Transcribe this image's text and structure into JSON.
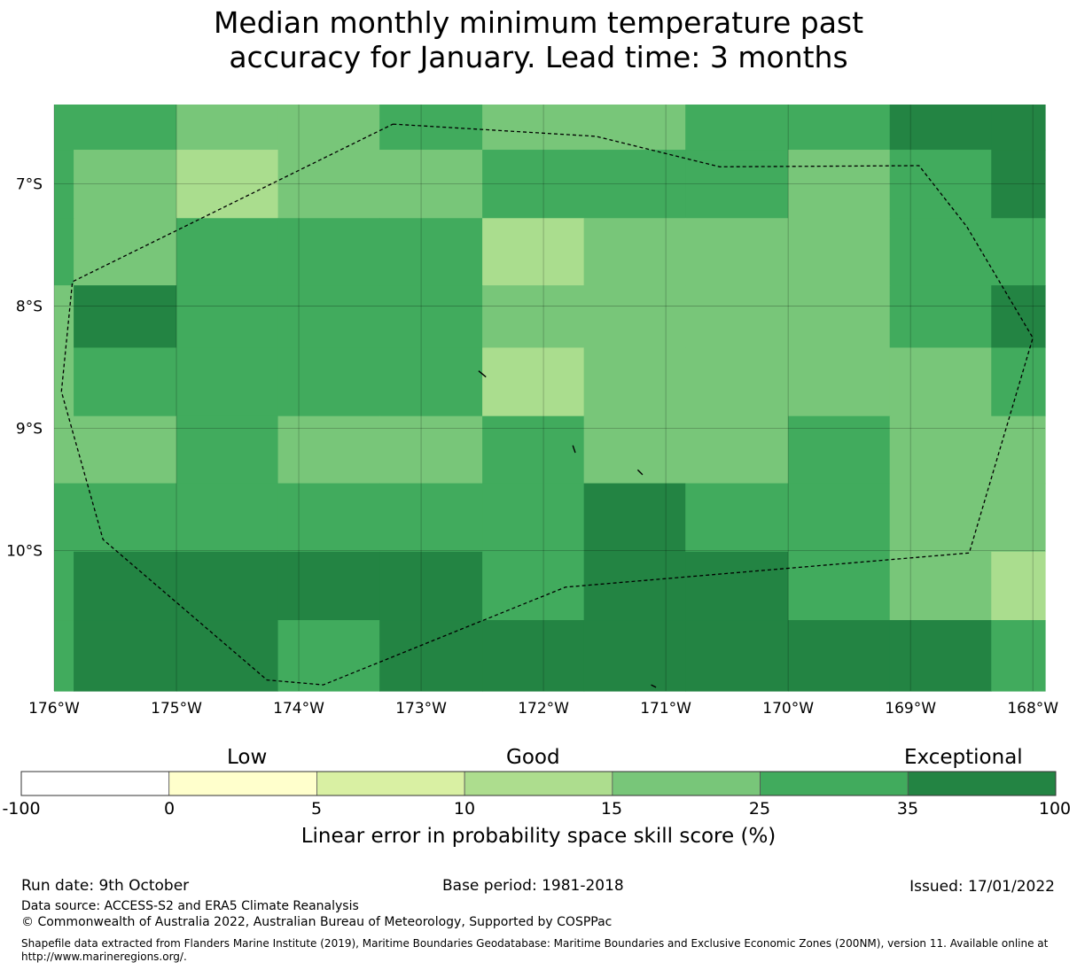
{
  "title": {
    "line1": "Median monthly minimum temperature past",
    "line2": "accuracy for January. Lead time: 3 months"
  },
  "map": {
    "lon_range": [
      -176.0,
      -167.9
    ],
    "lat_range": [
      -11.15,
      -6.35
    ],
    "lon_ticks": [
      {
        "value": -176,
        "label": "176°W"
      },
      {
        "value": -175,
        "label": "175°W"
      },
      {
        "value": -174,
        "label": "174°W"
      },
      {
        "value": -173,
        "label": "173°W"
      },
      {
        "value": -172,
        "label": "172°W"
      },
      {
        "value": -171,
        "label": "171°W"
      },
      {
        "value": -170,
        "label": "170°W"
      },
      {
        "value": -169,
        "label": "169°W"
      },
      {
        "value": -168,
        "label": "168°W"
      }
    ],
    "lat_ticks": [
      {
        "value": -7,
        "label": "7°S"
      },
      {
        "value": -8,
        "label": "8°S"
      },
      {
        "value": -9,
        "label": "9°S"
      },
      {
        "value": -10,
        "label": "10°S"
      }
    ],
    "grid": true,
    "colors": {
      "c4": "#aadd8e",
      "c5": "#78c679",
      "c6": "#41ab5d",
      "c7": "#238443"
    },
    "cells": [
      {
        "lon": [
          -176.0,
          -175.84
        ],
        "lat": [
          -6.72,
          -6.35
        ],
        "c": "c6"
      },
      {
        "lon": [
          -175.84,
          -175.0
        ],
        "lat": [
          -6.72,
          -6.35
        ],
        "c": "c6"
      },
      {
        "lon": [
          -175.0,
          -174.17
        ],
        "lat": [
          -6.72,
          -6.35
        ],
        "c": "c5"
      },
      {
        "lon": [
          -174.17,
          -173.34
        ],
        "lat": [
          -6.72,
          -6.35
        ],
        "c": "c5"
      },
      {
        "lon": [
          -173.34,
          -172.5
        ],
        "lat": [
          -6.72,
          -6.35
        ],
        "c": "c6"
      },
      {
        "lon": [
          -172.5,
          -171.67
        ],
        "lat": [
          -6.72,
          -6.35
        ],
        "c": "c5"
      },
      {
        "lon": [
          -171.67,
          -170.84
        ],
        "lat": [
          -6.72,
          -6.35
        ],
        "c": "c5"
      },
      {
        "lon": [
          -170.84,
          -170.0
        ],
        "lat": [
          -6.72,
          -6.35
        ],
        "c": "c6"
      },
      {
        "lon": [
          -170.0,
          -169.17
        ],
        "lat": [
          -6.72,
          -6.35
        ],
        "c": "c6"
      },
      {
        "lon": [
          -169.17,
          -168.34
        ],
        "lat": [
          -6.72,
          -6.35
        ],
        "c": "c7"
      },
      {
        "lon": [
          -168.34,
          -167.9
        ],
        "lat": [
          -6.72,
          -6.35
        ],
        "c": "c7"
      },
      {
        "lon": [
          -176.0,
          -175.84
        ],
        "lat": [
          -7.28,
          -6.72
        ],
        "c": "c6"
      },
      {
        "lon": [
          -175.84,
          -175.0
        ],
        "lat": [
          -7.28,
          -6.72
        ],
        "c": "c5"
      },
      {
        "lon": [
          -175.0,
          -174.17
        ],
        "lat": [
          -7.28,
          -6.72
        ],
        "c": "c4"
      },
      {
        "lon": [
          -174.17,
          -173.34
        ],
        "lat": [
          -7.28,
          -6.72
        ],
        "c": "c5"
      },
      {
        "lon": [
          -173.34,
          -172.5
        ],
        "lat": [
          -7.28,
          -6.72
        ],
        "c": "c5"
      },
      {
        "lon": [
          -172.5,
          -171.67
        ],
        "lat": [
          -7.28,
          -6.72
        ],
        "c": "c6"
      },
      {
        "lon": [
          -171.67,
          -170.84
        ],
        "lat": [
          -7.28,
          -6.72
        ],
        "c": "c6"
      },
      {
        "lon": [
          -170.84,
          -170.0
        ],
        "lat": [
          -7.28,
          -6.72
        ],
        "c": "c6"
      },
      {
        "lon": [
          -170.0,
          -169.17
        ],
        "lat": [
          -7.28,
          -6.72
        ],
        "c": "c5"
      },
      {
        "lon": [
          -169.17,
          -168.34
        ],
        "lat": [
          -7.28,
          -6.72
        ],
        "c": "c6"
      },
      {
        "lon": [
          -168.34,
          -167.9
        ],
        "lat": [
          -7.28,
          -6.72
        ],
        "c": "c7"
      },
      {
        "lon": [
          -176.0,
          -175.84
        ],
        "lat": [
          -7.83,
          -7.28
        ],
        "c": "c6"
      },
      {
        "lon": [
          -175.84,
          -175.0
        ],
        "lat": [
          -7.83,
          -7.28
        ],
        "c": "c5"
      },
      {
        "lon": [
          -175.0,
          -174.17
        ],
        "lat": [
          -7.83,
          -7.28
        ],
        "c": "c6"
      },
      {
        "lon": [
          -174.17,
          -173.34
        ],
        "lat": [
          -7.83,
          -7.28
        ],
        "c": "c6"
      },
      {
        "lon": [
          -173.34,
          -172.5
        ],
        "lat": [
          -7.83,
          -7.28
        ],
        "c": "c6"
      },
      {
        "lon": [
          -172.5,
          -171.67
        ],
        "lat": [
          -7.83,
          -7.28
        ],
        "c": "c4"
      },
      {
        "lon": [
          -171.67,
          -170.84
        ],
        "lat": [
          -7.83,
          -7.28
        ],
        "c": "c5"
      },
      {
        "lon": [
          -170.84,
          -170.0
        ],
        "lat": [
          -7.83,
          -7.28
        ],
        "c": "c5"
      },
      {
        "lon": [
          -170.0,
          -169.17
        ],
        "lat": [
          -7.83,
          -7.28
        ],
        "c": "c5"
      },
      {
        "lon": [
          -169.17,
          -168.34
        ],
        "lat": [
          -7.83,
          -7.28
        ],
        "c": "c6"
      },
      {
        "lon": [
          -168.34,
          -167.9
        ],
        "lat": [
          -7.83,
          -7.28
        ],
        "c": "c6"
      },
      {
        "lon": [
          -176.0,
          -175.84
        ],
        "lat": [
          -8.34,
          -7.83
        ],
        "c": "c5"
      },
      {
        "lon": [
          -175.84,
          -175.0
        ],
        "lat": [
          -8.34,
          -7.83
        ],
        "c": "c7"
      },
      {
        "lon": [
          -175.0,
          -174.17
        ],
        "lat": [
          -8.34,
          -7.83
        ],
        "c": "c6"
      },
      {
        "lon": [
          -174.17,
          -173.34
        ],
        "lat": [
          -8.34,
          -7.83
        ],
        "c": "c6"
      },
      {
        "lon": [
          -173.34,
          -172.5
        ],
        "lat": [
          -8.34,
          -7.83
        ],
        "c": "c6"
      },
      {
        "lon": [
          -172.5,
          -171.67
        ],
        "lat": [
          -8.34,
          -7.83
        ],
        "c": "c5"
      },
      {
        "lon": [
          -171.67,
          -170.84
        ],
        "lat": [
          -8.34,
          -7.83
        ],
        "c": "c5"
      },
      {
        "lon": [
          -170.84,
          -170.0
        ],
        "lat": [
          -8.34,
          -7.83
        ],
        "c": "c5"
      },
      {
        "lon": [
          -170.0,
          -169.17
        ],
        "lat": [
          -8.34,
          -7.83
        ],
        "c": "c5"
      },
      {
        "lon": [
          -169.17,
          -168.34
        ],
        "lat": [
          -8.34,
          -7.83
        ],
        "c": "c6"
      },
      {
        "lon": [
          -168.34,
          -167.9
        ],
        "lat": [
          -8.34,
          -7.83
        ],
        "c": "c7"
      },
      {
        "lon": [
          -176.0,
          -175.84
        ],
        "lat": [
          -8.9,
          -8.34
        ],
        "c": "c5"
      },
      {
        "lon": [
          -175.84,
          -175.0
        ],
        "lat": [
          -8.9,
          -8.34
        ],
        "c": "c6"
      },
      {
        "lon": [
          -175.0,
          -174.17
        ],
        "lat": [
          -8.9,
          -8.34
        ],
        "c": "c6"
      },
      {
        "lon": [
          -174.17,
          -173.34
        ],
        "lat": [
          -8.9,
          -8.34
        ],
        "c": "c6"
      },
      {
        "lon": [
          -173.34,
          -172.5
        ],
        "lat": [
          -8.9,
          -8.34
        ],
        "c": "c6"
      },
      {
        "lon": [
          -172.5,
          -171.67
        ],
        "lat": [
          -8.9,
          -8.34
        ],
        "c": "c4"
      },
      {
        "lon": [
          -171.67,
          -170.84
        ],
        "lat": [
          -8.9,
          -8.34
        ],
        "c": "c5"
      },
      {
        "lon": [
          -170.84,
          -170.0
        ],
        "lat": [
          -8.9,
          -8.34
        ],
        "c": "c5"
      },
      {
        "lon": [
          -170.0,
          -169.17
        ],
        "lat": [
          -8.9,
          -8.34
        ],
        "c": "c5"
      },
      {
        "lon": [
          -169.17,
          -168.34
        ],
        "lat": [
          -8.9,
          -8.34
        ],
        "c": "c5"
      },
      {
        "lon": [
          -168.34,
          -167.9
        ],
        "lat": [
          -8.9,
          -8.34
        ],
        "c": "c6"
      },
      {
        "lon": [
          -176.0,
          -175.84
        ],
        "lat": [
          -9.45,
          -8.9
        ],
        "c": "c5"
      },
      {
        "lon": [
          -175.84,
          -175.0
        ],
        "lat": [
          -9.45,
          -8.9
        ],
        "c": "c5"
      },
      {
        "lon": [
          -175.0,
          -174.17
        ],
        "lat": [
          -9.45,
          -8.9
        ],
        "c": "c6"
      },
      {
        "lon": [
          -174.17,
          -173.34
        ],
        "lat": [
          -9.45,
          -8.9
        ],
        "c": "c5"
      },
      {
        "lon": [
          -173.34,
          -172.5
        ],
        "lat": [
          -9.45,
          -8.9
        ],
        "c": "c5"
      },
      {
        "lon": [
          -172.5,
          -171.67
        ],
        "lat": [
          -9.45,
          -8.9
        ],
        "c": "c6"
      },
      {
        "lon": [
          -171.67,
          -170.84
        ],
        "lat": [
          -9.45,
          -8.9
        ],
        "c": "c5"
      },
      {
        "lon": [
          -170.84,
          -170.0
        ],
        "lat": [
          -9.45,
          -8.9
        ],
        "c": "c5"
      },
      {
        "lon": [
          -170.0,
          -169.17
        ],
        "lat": [
          -9.45,
          -8.9
        ],
        "c": "c6"
      },
      {
        "lon": [
          -169.17,
          -168.34
        ],
        "lat": [
          -9.45,
          -8.9
        ],
        "c": "c5"
      },
      {
        "lon": [
          -168.34,
          -167.9
        ],
        "lat": [
          -9.45,
          -8.9
        ],
        "c": "c5"
      },
      {
        "lon": [
          -176.0,
          -175.84
        ],
        "lat": [
          -10.01,
          -9.45
        ],
        "c": "c6"
      },
      {
        "lon": [
          -175.84,
          -175.0
        ],
        "lat": [
          -10.01,
          -9.45
        ],
        "c": "c6"
      },
      {
        "lon": [
          -175.0,
          -174.17
        ],
        "lat": [
          -10.01,
          -9.45
        ],
        "c": "c6"
      },
      {
        "lon": [
          -174.17,
          -173.34
        ],
        "lat": [
          -10.01,
          -9.45
        ],
        "c": "c6"
      },
      {
        "lon": [
          -173.34,
          -172.5
        ],
        "lat": [
          -10.01,
          -9.45
        ],
        "c": "c6"
      },
      {
        "lon": [
          -172.5,
          -171.67
        ],
        "lat": [
          -10.01,
          -9.45
        ],
        "c": "c6"
      },
      {
        "lon": [
          -171.67,
          -170.84
        ],
        "lat": [
          -10.01,
          -9.45
        ],
        "c": "c7"
      },
      {
        "lon": [
          -170.84,
          -170.0
        ],
        "lat": [
          -10.01,
          -9.45
        ],
        "c": "c6"
      },
      {
        "lon": [
          -170.0,
          -169.17
        ],
        "lat": [
          -10.01,
          -9.45
        ],
        "c": "c6"
      },
      {
        "lon": [
          -169.17,
          -168.34
        ],
        "lat": [
          -10.01,
          -9.45
        ],
        "c": "c5"
      },
      {
        "lon": [
          -168.34,
          -167.9
        ],
        "lat": [
          -10.01,
          -9.45
        ],
        "c": "c5"
      },
      {
        "lon": [
          -176.0,
          -175.84
        ],
        "lat": [
          -10.57,
          -10.01
        ],
        "c": "c6"
      },
      {
        "lon": [
          -175.84,
          -175.0
        ],
        "lat": [
          -10.57,
          -10.01
        ],
        "c": "c7"
      },
      {
        "lon": [
          -175.0,
          -174.17
        ],
        "lat": [
          -10.57,
          -10.01
        ],
        "c": "c7"
      },
      {
        "lon": [
          -174.17,
          -173.34
        ],
        "lat": [
          -10.57,
          -10.01
        ],
        "c": "c7"
      },
      {
        "lon": [
          -173.34,
          -172.5
        ],
        "lat": [
          -10.57,
          -10.01
        ],
        "c": "c7"
      },
      {
        "lon": [
          -172.5,
          -171.67
        ],
        "lat": [
          -10.57,
          -10.01
        ],
        "c": "c6"
      },
      {
        "lon": [
          -171.67,
          -170.84
        ],
        "lat": [
          -10.57,
          -10.01
        ],
        "c": "c7"
      },
      {
        "lon": [
          -170.84,
          -170.0
        ],
        "lat": [
          -10.57,
          -10.01
        ],
        "c": "c7"
      },
      {
        "lon": [
          -170.0,
          -169.17
        ],
        "lat": [
          -10.57,
          -10.01
        ],
        "c": "c6"
      },
      {
        "lon": [
          -169.17,
          -168.34
        ],
        "lat": [
          -10.57,
          -10.01
        ],
        "c": "c5"
      },
      {
        "lon": [
          -168.34,
          -167.9
        ],
        "lat": [
          -10.57,
          -10.01
        ],
        "c": "c4"
      },
      {
        "lon": [
          -176.0,
          -175.84
        ],
        "lat": [
          -11.15,
          -10.57
        ],
        "c": "c6"
      },
      {
        "lon": [
          -175.84,
          -175.0
        ],
        "lat": [
          -11.15,
          -10.57
        ],
        "c": "c7"
      },
      {
        "lon": [
          -175.0,
          -174.17
        ],
        "lat": [
          -11.15,
          -10.57
        ],
        "c": "c7"
      },
      {
        "lon": [
          -174.17,
          -173.34
        ],
        "lat": [
          -11.15,
          -10.57
        ],
        "c": "c6"
      },
      {
        "lon": [
          -173.34,
          -172.5
        ],
        "lat": [
          -11.15,
          -10.57
        ],
        "c": "c7"
      },
      {
        "lon": [
          -172.5,
          -171.67
        ],
        "lat": [
          -11.15,
          -10.57
        ],
        "c": "c7"
      },
      {
        "lon": [
          -171.67,
          -170.84
        ],
        "lat": [
          -11.15,
          -10.57
        ],
        "c": "c7"
      },
      {
        "lon": [
          -170.84,
          -170.0
        ],
        "lat": [
          -11.15,
          -10.57
        ],
        "c": "c7"
      },
      {
        "lon": [
          -170.0,
          -169.17
        ],
        "lat": [
          -11.15,
          -10.57
        ],
        "c": "c7"
      },
      {
        "lon": [
          -169.17,
          -168.34
        ],
        "lat": [
          -11.15,
          -10.57
        ],
        "c": "c7"
      },
      {
        "lon": [
          -168.34,
          -167.9
        ],
        "lat": [
          -11.15,
          -10.57
        ],
        "c": "c6"
      }
    ],
    "eez_boundary": [
      [
        -173.23,
        -6.51
      ],
      [
        -171.57,
        -6.61
      ],
      [
        -170.56,
        -6.86
      ],
      [
        -168.93,
        -6.85
      ],
      [
        -168.54,
        -7.35
      ],
      [
        -168.0,
        -8.26
      ],
      [
        -168.52,
        -10.02
      ],
      [
        -171.82,
        -10.3
      ],
      [
        -173.8,
        -11.1
      ],
      [
        -174.26,
        -11.06
      ],
      [
        -175.6,
        -9.91
      ],
      [
        -175.94,
        -8.7
      ],
      [
        -175.85,
        -7.8
      ],
      [
        -173.23,
        -6.51
      ]
    ],
    "islands": [
      [
        [
          -172.53,
          -8.53
        ],
        [
          -172.47,
          -8.58
        ]
      ],
      [
        [
          -171.76,
          -9.14
        ],
        [
          -171.74,
          -9.2
        ]
      ],
      [
        [
          -171.23,
          -9.34
        ],
        [
          -171.19,
          -9.38
        ]
      ],
      [
        [
          -171.12,
          -11.1
        ],
        [
          -171.08,
          -11.12
        ]
      ]
    ]
  },
  "colorbar": {
    "words": {
      "low": "Low",
      "good": "Good",
      "exceptional": "Exceptional"
    },
    "bins": [
      {
        "from": -100,
        "to": 0,
        "color": "#ffffff"
      },
      {
        "from": 0,
        "to": 5,
        "color": "#ffffcc"
      },
      {
        "from": 5,
        "to": 10,
        "color": "#d9f0a3"
      },
      {
        "from": 10,
        "to": 15,
        "color": "#addd8e"
      },
      {
        "from": 15,
        "to": 25,
        "color": "#78c679"
      },
      {
        "from": 25,
        "to": 35,
        "color": "#41ab5d"
      },
      {
        "from": 35,
        "to": 100,
        "color": "#238443"
      }
    ],
    "ticks": [
      "-100",
      "0",
      "5",
      "10",
      "15",
      "25",
      "35",
      "100"
    ],
    "label": "Linear error in probability space skill score (%)"
  },
  "footer": {
    "run_date": "Run date: 9th October",
    "base_period": "Base period: 1981-2018",
    "issued": "Issued: 17/01/2022",
    "data_source": "Data source: ACCESS-S2 and ERA5 Climate Reanalysis",
    "copyright": "© Commonwealth of Australia 2022, Australian Bureau of Meteorology, Supported by COSPPac",
    "shapefile_line1": "Shapefile data extracted from Flanders Marine Institute (2019), Maritime Boundaries Geodatabase: Maritime Boundaries and Exclusive Economic Zones (200NM), version 11. Available online at",
    "shapefile_line2": "http://www.marineregions.org/."
  }
}
